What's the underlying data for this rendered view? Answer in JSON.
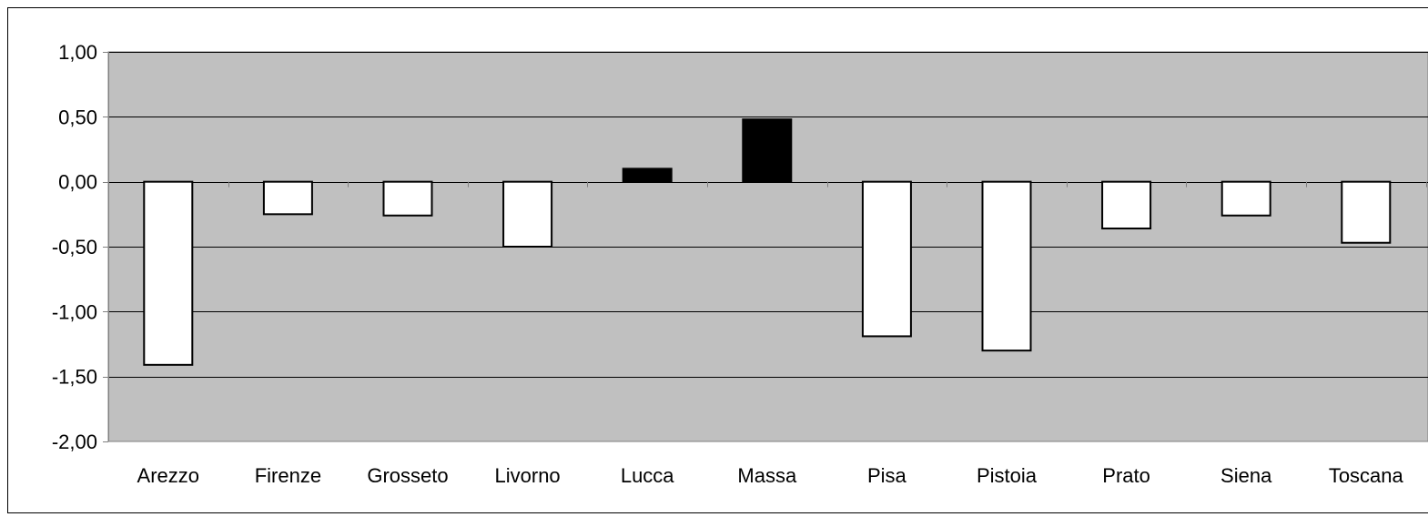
{
  "chart_data": {
    "type": "bar",
    "title": "",
    "xlabel": "",
    "ylabel": "",
    "categories": [
      "Arezzo",
      "Firenze",
      "Grosseto",
      "Livorno",
      "Lucca",
      "Massa",
      "Pisa",
      "Pistoia",
      "Prato",
      "Siena",
      "Toscana"
    ],
    "values": [
      -1.41,
      -0.25,
      -0.26,
      -0.5,
      0.1,
      0.48,
      -1.19,
      -1.3,
      -0.36,
      -0.26,
      -0.47
    ],
    "ylim": [
      -2.0,
      1.0
    ],
    "y_ticks": [
      1.0,
      0.5,
      0.0,
      -0.5,
      -1.0,
      -1.5,
      -2.0
    ],
    "y_tick_labels": [
      "1,00",
      "0,50",
      "0,00",
      "-0,50",
      "-1,00",
      "-1,50",
      "-2,00"
    ],
    "grid": true,
    "legend": "none",
    "colors": {
      "plot_background": "#c0c0c0",
      "positive_bar": "#000000",
      "negative_bar": "#ffffff",
      "bar_outline": "#000000",
      "gridline": "#000000"
    }
  }
}
